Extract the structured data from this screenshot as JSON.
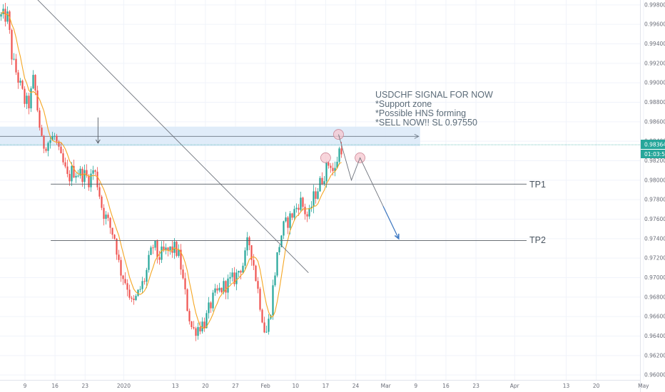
{
  "chart_data": {
    "type": "candlestick",
    "symbol": "USDCHF",
    "y_ticks": [
      "0.99800",
      "0.99600",
      "0.99400",
      "0.99200",
      "0.99000",
      "0.98800",
      "0.98600",
      "0.98400",
      "0.98200",
      "0.98000",
      "0.97800",
      "0.97600",
      "0.97400",
      "0.97200",
      "0.97000",
      "0.96800",
      "0.96600",
      "0.96400",
      "0.96200",
      "0.96000"
    ],
    "ylim": [
      0.9595,
      0.9985
    ],
    "x_ticks": [
      "9",
      "16",
      "23",
      "2020",
      "13",
      "20",
      "27",
      "Feb",
      "10",
      "17",
      "24",
      "Mar",
      "9",
      "16",
      "23",
      "Apr",
      "13",
      "20",
      "May"
    ],
    "last_price": "0.98364",
    "countdown": "01:03:50",
    "price_path": [
      [
        "2019-12-05",
        0.9968
      ],
      [
        "2019-12-06",
        0.9925
      ],
      [
        "2019-12-09",
        0.988
      ],
      [
        "2019-12-10",
        0.9878
      ],
      [
        "2019-12-11",
        0.9905
      ],
      [
        "2019-12-12",
        0.987
      ],
      [
        "2019-12-13",
        0.9835
      ],
      [
        "2019-12-16",
        0.9845
      ],
      [
        "2019-12-17",
        0.9825
      ],
      [
        "2019-12-18",
        0.9815
      ],
      [
        "2019-12-19",
        0.98
      ],
      [
        "2019-12-20",
        0.981
      ],
      [
        "2019-12-23",
        0.9805
      ],
      [
        "2019-12-24",
        0.98
      ],
      [
        "2019-12-25",
        0.9812
      ],
      [
        "2019-12-26",
        0.9795
      ],
      [
        "2019-12-27",
        0.977
      ],
      [
        "2019-12-30",
        0.974
      ],
      [
        "2019-12-31",
        0.971
      ],
      [
        "2020-01-02",
        0.969
      ],
      [
        "2020-01-03",
        0.967
      ],
      [
        "2020-01-06",
        0.97
      ],
      [
        "2020-01-07",
        0.972
      ],
      [
        "2020-01-08",
        0.9735
      ],
      [
        "2020-01-09",
        0.972
      ],
      [
        "2020-01-10",
        0.9725
      ],
      [
        "2020-01-13",
        0.973
      ],
      [
        "2020-01-14",
        0.972
      ],
      [
        "2020-01-15",
        0.969
      ],
      [
        "2020-01-16",
        0.9665
      ],
      [
        "2020-01-17",
        0.9645
      ],
      [
        "2020-01-20",
        0.9655
      ],
      [
        "2020-01-21",
        0.967
      ],
      [
        "2020-01-22",
        0.968
      ],
      [
        "2020-01-23",
        0.9685
      ],
      [
        "2020-01-24",
        0.969
      ],
      [
        "2020-01-27",
        0.97
      ],
      [
        "2020-01-28",
        0.971
      ],
      [
        "2020-01-29",
        0.9715
      ],
      [
        "2020-01-30",
        0.974
      ],
      [
        "2020-01-31",
        0.972
      ],
      [
        "2020-02-03",
        0.964
      ],
      [
        "2020-02-04",
        0.966
      ],
      [
        "2020-02-05",
        0.97
      ],
      [
        "2020-02-06",
        0.973
      ],
      [
        "2020-02-07",
        0.975
      ],
      [
        "2020-02-10",
        0.977
      ],
      [
        "2020-02-11",
        0.978
      ],
      [
        "2020-02-12",
        0.977
      ],
      [
        "2020-02-13",
        0.976
      ],
      [
        "2020-02-14",
        0.978
      ],
      [
        "2020-02-17",
        0.981
      ],
      [
        "2020-02-18",
        0.982
      ],
      [
        "2020-02-19",
        0.9805
      ],
      [
        "2020-02-20",
        0.983
      ],
      [
        "2020-02-21",
        0.9836
      ]
    ],
    "support_zone": [
      0.9835,
      0.9855
    ],
    "trendline": [
      [
        "2019-12-03",
        1.0025
      ],
      [
        "2020-02-13",
        0.9705
      ]
    ],
    "pattern_circles": [
      [
        "2020-02-17",
        0.9823
      ],
      [
        "2020-02-20",
        0.9847
      ],
      [
        "2020-02-25",
        0.9823
      ]
    ],
    "projection": [
      [
        "2020-02-20",
        0.9847
      ],
      [
        "2020-02-23",
        0.98
      ],
      [
        "2020-02-25",
        0.9823
      ],
      [
        "2020-03-05",
        0.974
      ]
    ],
    "zone_arrow_date": "2019-12-26",
    "targets": [
      {
        "label": "TP1",
        "price": 0.9796,
        "start": "2019-12-15"
      },
      {
        "label": "TP2",
        "price": 0.9738,
        "start": "2019-12-15"
      }
    ],
    "title": "USDCHF SIGNAL FOR NOW",
    "notes": [
      "*Support zone",
      "*Possible HNS forming",
      "*SELL NOW!! SL 0.97550"
    ],
    "colors": {
      "up": "#26a69a",
      "down": "#ef5350",
      "ma": "#f5a623",
      "zone": "#dbe9f8",
      "price_tag": "#26a69a",
      "countdown_tag": "#26a69a",
      "projection": "#3f7ac4",
      "circle": "#f6c7cf"
    }
  }
}
